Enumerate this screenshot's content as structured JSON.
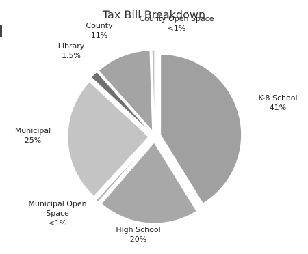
{
  "chart_data": {
    "type": "pie",
    "title": "Tax Bill Breakdown",
    "exploded": true,
    "slices": [
      {
        "label": "K-8 School",
        "value_label": "41%",
        "value": 41.0,
        "color": "#a0a0a0"
      },
      {
        "label": "High School",
        "value_label": "20%",
        "value": 20.0,
        "color": "#a8a8a8"
      },
      {
        "label": "Municipal Open Space",
        "label_lines": [
          "Municipal Open",
          "Space"
        ],
        "value_label": "<1%",
        "value": 0.5,
        "color": "#b0b0b0"
      },
      {
        "label": "Municipal",
        "value_label": "25%",
        "value": 25.0,
        "color": "#c4c4c4"
      },
      {
        "label": "Library",
        "value_label": "1.5%",
        "value": 1.5,
        "color": "#707070"
      },
      {
        "label": "County",
        "value_label": "11%",
        "value": 11.0,
        "color": "#a4a4a4"
      },
      {
        "label": "County Open Space",
        "value_label": "<1%",
        "value": 0.5,
        "color": "#c0c0c0"
      }
    ]
  }
}
